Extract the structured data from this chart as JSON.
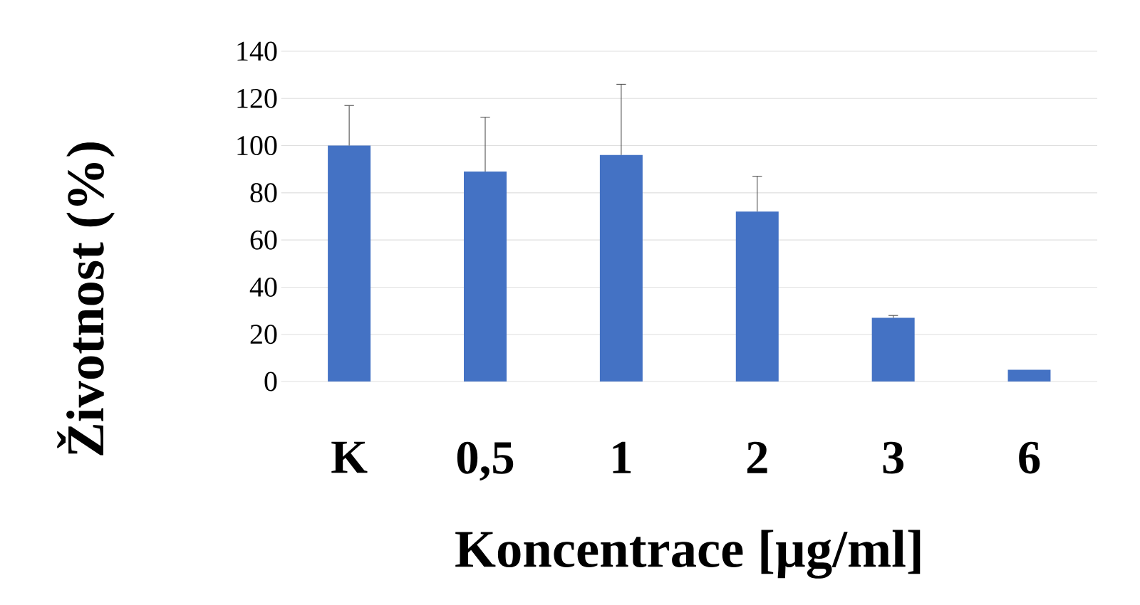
{
  "chart_data": {
    "type": "bar",
    "xlabel": "Koncentrace [µg/ml]",
    "ylabel": "Životnost (%)",
    "categories": [
      "K",
      "0,5",
      "1",
      "2",
      "3",
      "6"
    ],
    "values": [
      100,
      89,
      96,
      72,
      27,
      5
    ],
    "errors": [
      [
        100,
        117
      ],
      [
        89,
        112
      ],
      [
        96,
        126
      ],
      [
        72,
        87
      ],
      [
        27,
        28
      ],
      null
    ],
    "color": "#4472c4",
    "ylim": [
      0,
      140
    ],
    "yticks": [
      0,
      20,
      40,
      60,
      80,
      100,
      120,
      140
    ],
    "grid": "y"
  }
}
